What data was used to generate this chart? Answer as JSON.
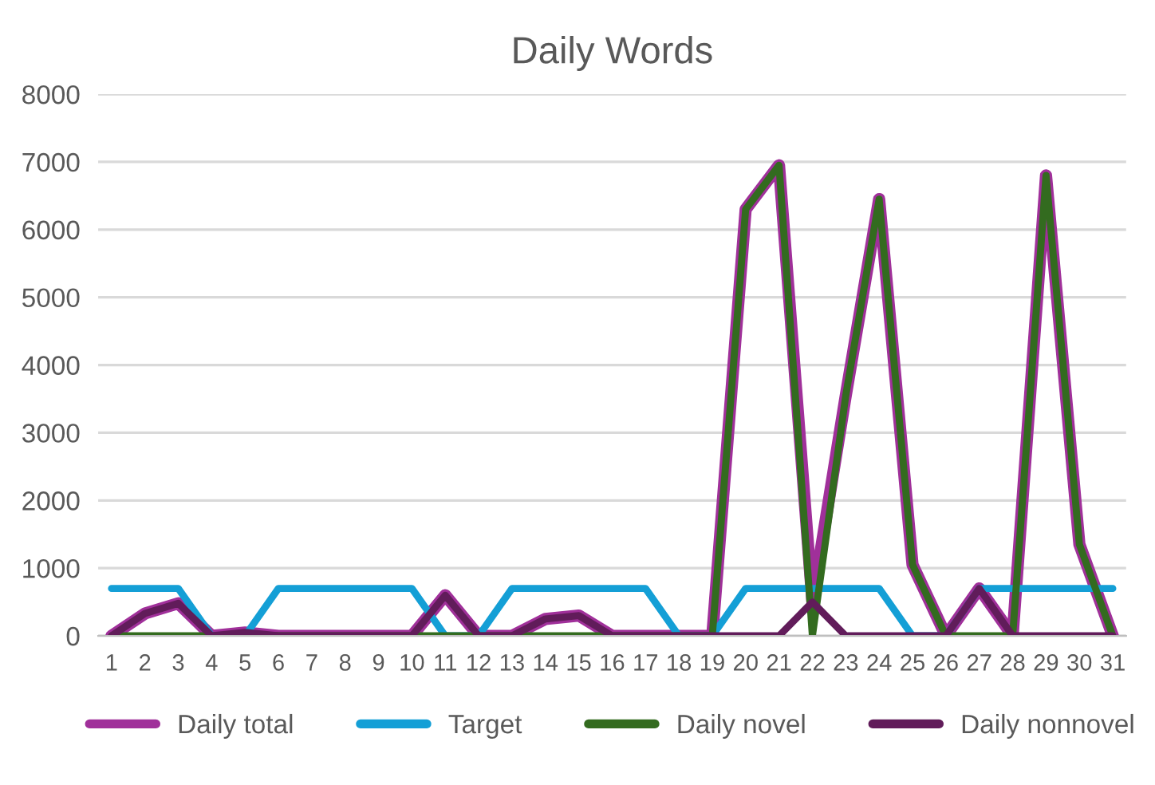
{
  "chart_data": {
    "type": "line",
    "title": "Daily Words",
    "categories": [
      "1",
      "2",
      "3",
      "4",
      "5",
      "6",
      "7",
      "8",
      "9",
      "10",
      "11",
      "12",
      "13",
      "14",
      "15",
      "16",
      "17",
      "18",
      "19",
      "20",
      "21",
      "22",
      "23",
      "24",
      "25",
      "26",
      "27",
      "28",
      "29",
      "30",
      "31"
    ],
    "series": [
      {
        "name": "Daily total",
        "color": "#a0309a",
        "values": [
          0,
          330,
          480,
          0,
          50,
          0,
          0,
          0,
          0,
          0,
          600,
          0,
          0,
          250,
          300,
          0,
          0,
          0,
          0,
          6300,
          6950,
          500,
          3550,
          6450,
          1050,
          0,
          700,
          0,
          6800,
          1350,
          0
        ]
      },
      {
        "name": "Target",
        "color": "#149fd6",
        "values": [
          700,
          700,
          700,
          0,
          0,
          700,
          700,
          700,
          700,
          700,
          0,
          0,
          700,
          700,
          700,
          700,
          700,
          0,
          0,
          700,
          700,
          700,
          700,
          700,
          0,
          0,
          700,
          700,
          700,
          700,
          700
        ]
      },
      {
        "name": "Daily novel",
        "color": "#336b1f",
        "values": [
          0,
          0,
          0,
          0,
          0,
          0,
          0,
          0,
          0,
          0,
          0,
          0,
          0,
          0,
          0,
          0,
          0,
          0,
          0,
          6300,
          6950,
          0,
          3550,
          6450,
          1050,
          0,
          0,
          0,
          6800,
          1350,
          0
        ]
      },
      {
        "name": "Daily nonnovel",
        "color": "#611c5a",
        "values": [
          0,
          330,
          480,
          0,
          50,
          0,
          0,
          0,
          0,
          0,
          600,
          0,
          0,
          250,
          300,
          0,
          0,
          0,
          0,
          0,
          0,
          500,
          0,
          0,
          0,
          0,
          700,
          0,
          0,
          0,
          0
        ]
      }
    ],
    "ylim": [
      0,
      8000
    ],
    "yticks": [
      0,
      1000,
      2000,
      3000,
      4000,
      5000,
      6000,
      7000,
      8000
    ],
    "grid": "y",
    "legend": "bottom",
    "marker": "none",
    "line_style": "solid"
  }
}
